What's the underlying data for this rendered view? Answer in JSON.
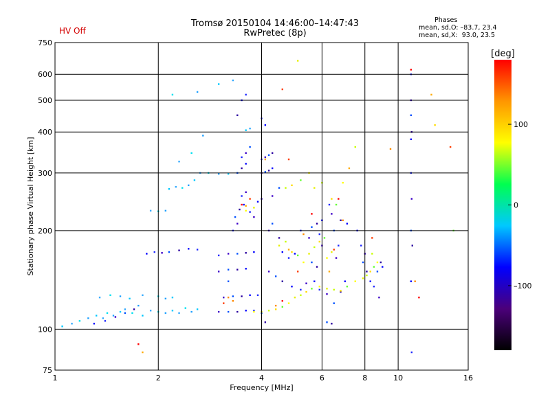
{
  "header": {
    "title_line1": "Tromsø 20150104 14:46:00–14:47:43",
    "title_line2": "RwPretec (8p)",
    "hv_status": "HV Off",
    "phases_title": "Phases",
    "phase_o": "mean, sd,O: –83.7, 23.4",
    "phase_x": "mean, sd,X:  93.0, 23.5"
  },
  "chart_data": {
    "type": "scatter",
    "title": "",
    "xlabel": "Frequency [MHz]",
    "ylabel": "Stationary phase Virtual Height [km]",
    "x_scale": "log",
    "y_scale": "log",
    "xlim": [
      1,
      16
    ],
    "ylim": [
      75,
      750
    ],
    "x_ticks": [
      1,
      2,
      4,
      6,
      8,
      10,
      16
    ],
    "x_tick_labels": [
      "1",
      "2",
      "4",
      "6",
      "8",
      "10",
      "16"
    ],
    "y_ticks": [
      75,
      100,
      200,
      300,
      400,
      500,
      600,
      750
    ],
    "y_tick_labels": [
      "75",
      "100",
      "200",
      "300",
      "400",
      "500",
      "600",
      "750"
    ],
    "grid": true,
    "colorbar": {
      "label": "[deg]",
      "range": [
        -180,
        180
      ],
      "ticks": [
        100,
        0,
        -100
      ],
      "tick_labels": [
        "100",
        "0",
        "–100"
      ],
      "colors": [
        "#000000",
        "#4b007a",
        "#0000ff",
        "#00c8ff",
        "#00ff50",
        "#ffff00",
        "#ff9600",
        "#ff0000"
      ]
    },
    "series": [
      {
        "color_hint": "cyan-lightblue",
        "points": [
          [
            1.05,
            102
          ],
          [
            1.12,
            104
          ],
          [
            1.18,
            106
          ],
          [
            1.25,
            108
          ],
          [
            1.32,
            110
          ],
          [
            1.38,
            108
          ],
          [
            1.42,
            112
          ],
          [
            1.48,
            110
          ],
          [
            1.55,
            113
          ],
          [
            1.6,
            115
          ],
          [
            1.68,
            112
          ],
          [
            1.75,
            118
          ],
          [
            1.8,
            110
          ],
          [
            1.9,
            114
          ],
          [
            2.0,
            113
          ],
          [
            2.1,
            112
          ],
          [
            2.2,
            114
          ],
          [
            2.3,
            112
          ],
          [
            2.4,
            116
          ],
          [
            2.5,
            113
          ],
          [
            2.6,
            115
          ],
          [
            1.35,
            125
          ],
          [
            1.45,
            127
          ],
          [
            1.55,
            126
          ],
          [
            1.65,
            124
          ],
          [
            1.8,
            127
          ],
          [
            2.0,
            126
          ],
          [
            2.1,
            124
          ],
          [
            2.2,
            125
          ],
          [
            1.9,
            230
          ],
          [
            2.0,
            229
          ],
          [
            2.1,
            230
          ],
          [
            2.15,
            268
          ],
          [
            2.25,
            272
          ],
          [
            2.35,
            270
          ],
          [
            2.45,
            275
          ],
          [
            2.55,
            285
          ],
          [
            2.65,
            300
          ],
          [
            2.8,
            300
          ],
          [
            3.0,
            298
          ],
          [
            3.2,
            298
          ],
          [
            2.3,
            325
          ],
          [
            2.5,
            345
          ],
          [
            2.7,
            390
          ],
          [
            3.6,
            405
          ],
          [
            3.7,
            410
          ],
          [
            2.2,
            520
          ],
          [
            2.6,
            530
          ],
          [
            3.0,
            560
          ],
          [
            3.3,
            575
          ]
        ]
      },
      {
        "color_hint": "blue-purple",
        "points": [
          [
            1.3,
            104
          ],
          [
            1.4,
            106
          ],
          [
            1.5,
            109
          ],
          [
            1.6,
            112
          ],
          [
            1.7,
            115
          ],
          [
            1.85,
            170
          ],
          [
            1.95,
            172
          ],
          [
            2.05,
            171
          ],
          [
            2.15,
            172
          ],
          [
            2.3,
            174
          ],
          [
            2.45,
            176
          ],
          [
            2.6,
            175
          ],
          [
            3.0,
            113
          ],
          [
            3.2,
            113
          ],
          [
            3.4,
            113
          ],
          [
            3.6,
            114
          ],
          [
            3.8,
            114
          ],
          [
            3.1,
            125
          ],
          [
            3.3,
            126
          ],
          [
            3.5,
            126
          ],
          [
            3.7,
            127
          ],
          [
            3.9,
            127
          ],
          [
            3.0,
            150
          ],
          [
            3.2,
            152
          ],
          [
            3.4,
            152
          ],
          [
            3.6,
            153
          ],
          [
            3.0,
            168
          ],
          [
            3.2,
            170
          ],
          [
            3.4,
            170
          ],
          [
            3.6,
            171
          ],
          [
            3.8,
            172
          ],
          [
            3.3,
            200
          ],
          [
            3.4,
            210
          ],
          [
            3.35,
            220
          ],
          [
            3.45,
            232
          ],
          [
            3.55,
            240
          ],
          [
            3.5,
            255
          ],
          [
            3.6,
            262
          ],
          [
            3.4,
            300
          ],
          [
            3.5,
            310
          ],
          [
            3.6,
            320
          ],
          [
            3.5,
            335
          ],
          [
            3.6,
            345
          ],
          [
            3.7,
            360
          ],
          [
            3.4,
            450
          ],
          [
            3.5,
            500
          ],
          [
            3.6,
            520
          ],
          [
            4.0,
            300
          ],
          [
            4.1,
            302
          ],
          [
            4.2,
            305
          ],
          [
            4.3,
            310
          ],
          [
            4.0,
            330
          ],
          [
            4.1,
            335
          ],
          [
            4.2,
            340
          ],
          [
            4.3,
            345
          ],
          [
            4.1,
            420
          ],
          [
            4.0,
            440
          ],
          [
            4.2,
            200
          ],
          [
            4.3,
            210
          ],
          [
            4.5,
            190
          ],
          [
            4.6,
            172
          ],
          [
            4.8,
            165
          ],
          [
            4.2,
            150
          ],
          [
            4.4,
            145
          ],
          [
            4.6,
            140
          ],
          [
            4.9,
            135
          ],
          [
            5.2,
            132
          ],
          [
            5.4,
            138
          ],
          [
            4.0,
            112
          ],
          [
            4.1,
            105
          ],
          [
            5.0,
            170
          ],
          [
            5.2,
            200
          ],
          [
            5.5,
            190
          ],
          [
            5.6,
            205
          ],
          [
            5.8,
            210
          ],
          [
            6.0,
            215
          ],
          [
            5.9,
            195
          ],
          [
            6.0,
            180
          ],
          [
            5.6,
            160
          ],
          [
            5.8,
            155
          ],
          [
            5.7,
            140
          ],
          [
            5.9,
            132
          ],
          [
            6.2,
            128
          ],
          [
            6.5,
            120
          ],
          [
            6.8,
            130
          ],
          [
            7.0,
            140
          ],
          [
            6.7,
            180
          ],
          [
            6.6,
            165
          ],
          [
            6.5,
            200
          ],
          [
            6.8,
            215
          ],
          [
            7.1,
            210
          ],
          [
            6.3,
            240
          ],
          [
            6.4,
            225
          ],
          [
            6.2,
            105
          ],
          [
            6.4,
            104
          ],
          [
            7.6,
            200
          ],
          [
            7.8,
            180
          ],
          [
            8.0,
            170
          ],
          [
            7.9,
            160
          ],
          [
            8.1,
            150
          ],
          [
            8.3,
            140
          ],
          [
            8.5,
            135
          ],
          [
            8.8,
            125
          ],
          [
            8.7,
            150
          ],
          [
            8.9,
            160
          ],
          [
            9.0,
            155
          ],
          [
            10.9,
            600
          ],
          [
            10.9,
            500
          ],
          [
            10.9,
            450
          ],
          [
            10.95,
            400
          ],
          [
            10.9,
            380
          ],
          [
            10.9,
            300
          ],
          [
            10.95,
            250
          ],
          [
            10.9,
            200
          ],
          [
            11.0,
            180
          ],
          [
            10.9,
            140
          ],
          [
            10.95,
            85
          ],
          [
            4.3,
            255
          ],
          [
            4.5,
            270
          ],
          [
            4.0,
            250
          ],
          [
            3.9,
            245
          ],
          [
            3.7,
            228
          ],
          [
            3.8,
            220
          ],
          [
            3.2,
            140
          ]
        ]
      },
      {
        "color_hint": "orange-red",
        "points": [
          [
            3.1,
            120
          ],
          [
            3.3,
            122
          ],
          [
            3.5,
            240
          ],
          [
            3.6,
            238
          ],
          [
            3.7,
            250
          ],
          [
            4.4,
            118
          ],
          [
            4.6,
            122
          ],
          [
            4.8,
            175
          ],
          [
            5.1,
            150
          ],
          [
            5.3,
            195
          ],
          [
            5.6,
            225
          ],
          [
            6.3,
            150
          ],
          [
            6.5,
            175
          ],
          [
            6.9,
            215
          ],
          [
            6.7,
            250
          ],
          [
            7.2,
            310
          ],
          [
            8.4,
            190
          ],
          [
            9.5,
            355
          ],
          [
            10.9,
            620
          ],
          [
            12.5,
            520
          ],
          [
            14.2,
            360
          ],
          [
            11.2,
            140
          ],
          [
            11.5,
            125
          ],
          [
            4.1,
            330
          ],
          [
            4.6,
            540
          ],
          [
            3.2,
            125
          ],
          [
            1.75,
            90
          ],
          [
            1.8,
            85
          ],
          [
            4.8,
            330
          ]
        ]
      },
      {
        "color_hint": "yellow-green",
        "points": [
          [
            3.8,
            113
          ],
          [
            4.0,
            113
          ],
          [
            4.2,
            114
          ],
          [
            4.4,
            115
          ],
          [
            4.6,
            117
          ],
          [
            4.8,
            120
          ],
          [
            5.0,
            125
          ],
          [
            5.2,
            127
          ],
          [
            5.4,
            130
          ],
          [
            5.6,
            133
          ],
          [
            5.9,
            135
          ],
          [
            6.2,
            133
          ],
          [
            6.5,
            132
          ],
          [
            6.8,
            131
          ],
          [
            7.1,
            135
          ],
          [
            7.5,
            140
          ],
          [
            7.9,
            143
          ],
          [
            8.1,
            146
          ],
          [
            8.3,
            150
          ],
          [
            8.5,
            155
          ],
          [
            8.7,
            160
          ],
          [
            4.5,
            180
          ],
          [
            4.7,
            185
          ],
          [
            4.9,
            172
          ],
          [
            5.1,
            168
          ],
          [
            5.3,
            160
          ],
          [
            5.5,
            170
          ],
          [
            5.7,
            178
          ],
          [
            5.9,
            185
          ],
          [
            6.1,
            190
          ],
          [
            6.2,
            165
          ],
          [
            6.4,
            172
          ],
          [
            4.7,
            270
          ],
          [
            4.9,
            275
          ],
          [
            5.2,
            285
          ],
          [
            5.5,
            300
          ],
          [
            5.7,
            270
          ],
          [
            6.0,
            280
          ],
          [
            6.4,
            250
          ],
          [
            6.6,
            240
          ],
          [
            6.9,
            280
          ],
          [
            5.1,
            660
          ],
          [
            7.5,
            360
          ],
          [
            12.8,
            420
          ],
          [
            14.5,
            200
          ],
          [
            3.6,
            230
          ],
          [
            3.8,
            235
          ],
          [
            8.4,
            170
          ]
        ]
      }
    ]
  }
}
